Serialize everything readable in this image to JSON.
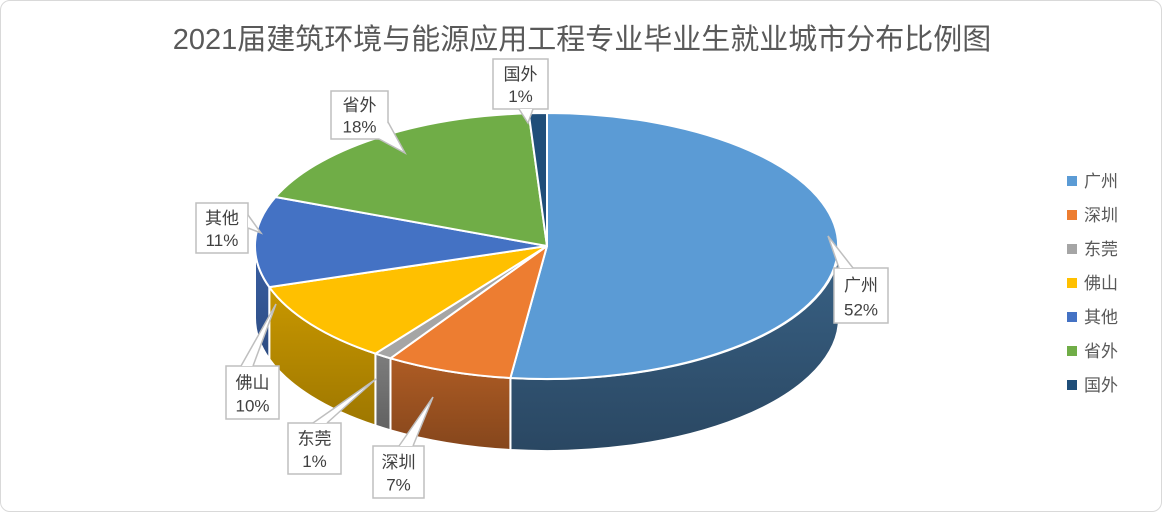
{
  "chart_data": {
    "type": "pie",
    "projection": "3d",
    "title": "2021届建筑环境与能源应用工程专业毕业生就业城市分布比例图",
    "categories": [
      "广州",
      "深圳",
      "东莞",
      "佛山",
      "其他",
      "省外",
      "国外"
    ],
    "values": [
      52,
      7,
      1,
      10,
      11,
      18,
      1
    ],
    "unit": "%",
    "colors": [
      "#5B9BD5",
      "#ED7D31",
      "#A5A5A5",
      "#FFC000",
      "#4472C4",
      "#70AD47",
      "#1F4E79"
    ],
    "data_labels": [
      "广州 52%",
      "深圳 7%",
      "东莞 1%",
      "佛山 10%",
      "其他 11%",
      "省外 18%",
      "国外 1%"
    ],
    "start_angle_deg": 0,
    "direction": "clockwise",
    "legend": {
      "position": "right",
      "entries": [
        "广州",
        "深圳",
        "东莞",
        "佛山",
        "其他",
        "省外",
        "国外"
      ]
    }
  },
  "style": {
    "background": "#FFFFFF",
    "title_color": "#595959",
    "legend_text_color": "#595959",
    "callout_text_color": "#404040",
    "callout_border_color": "#BFBFBF",
    "frame_border_color": "#D9D9D9",
    "slice_stroke": "#FFFFFF"
  }
}
